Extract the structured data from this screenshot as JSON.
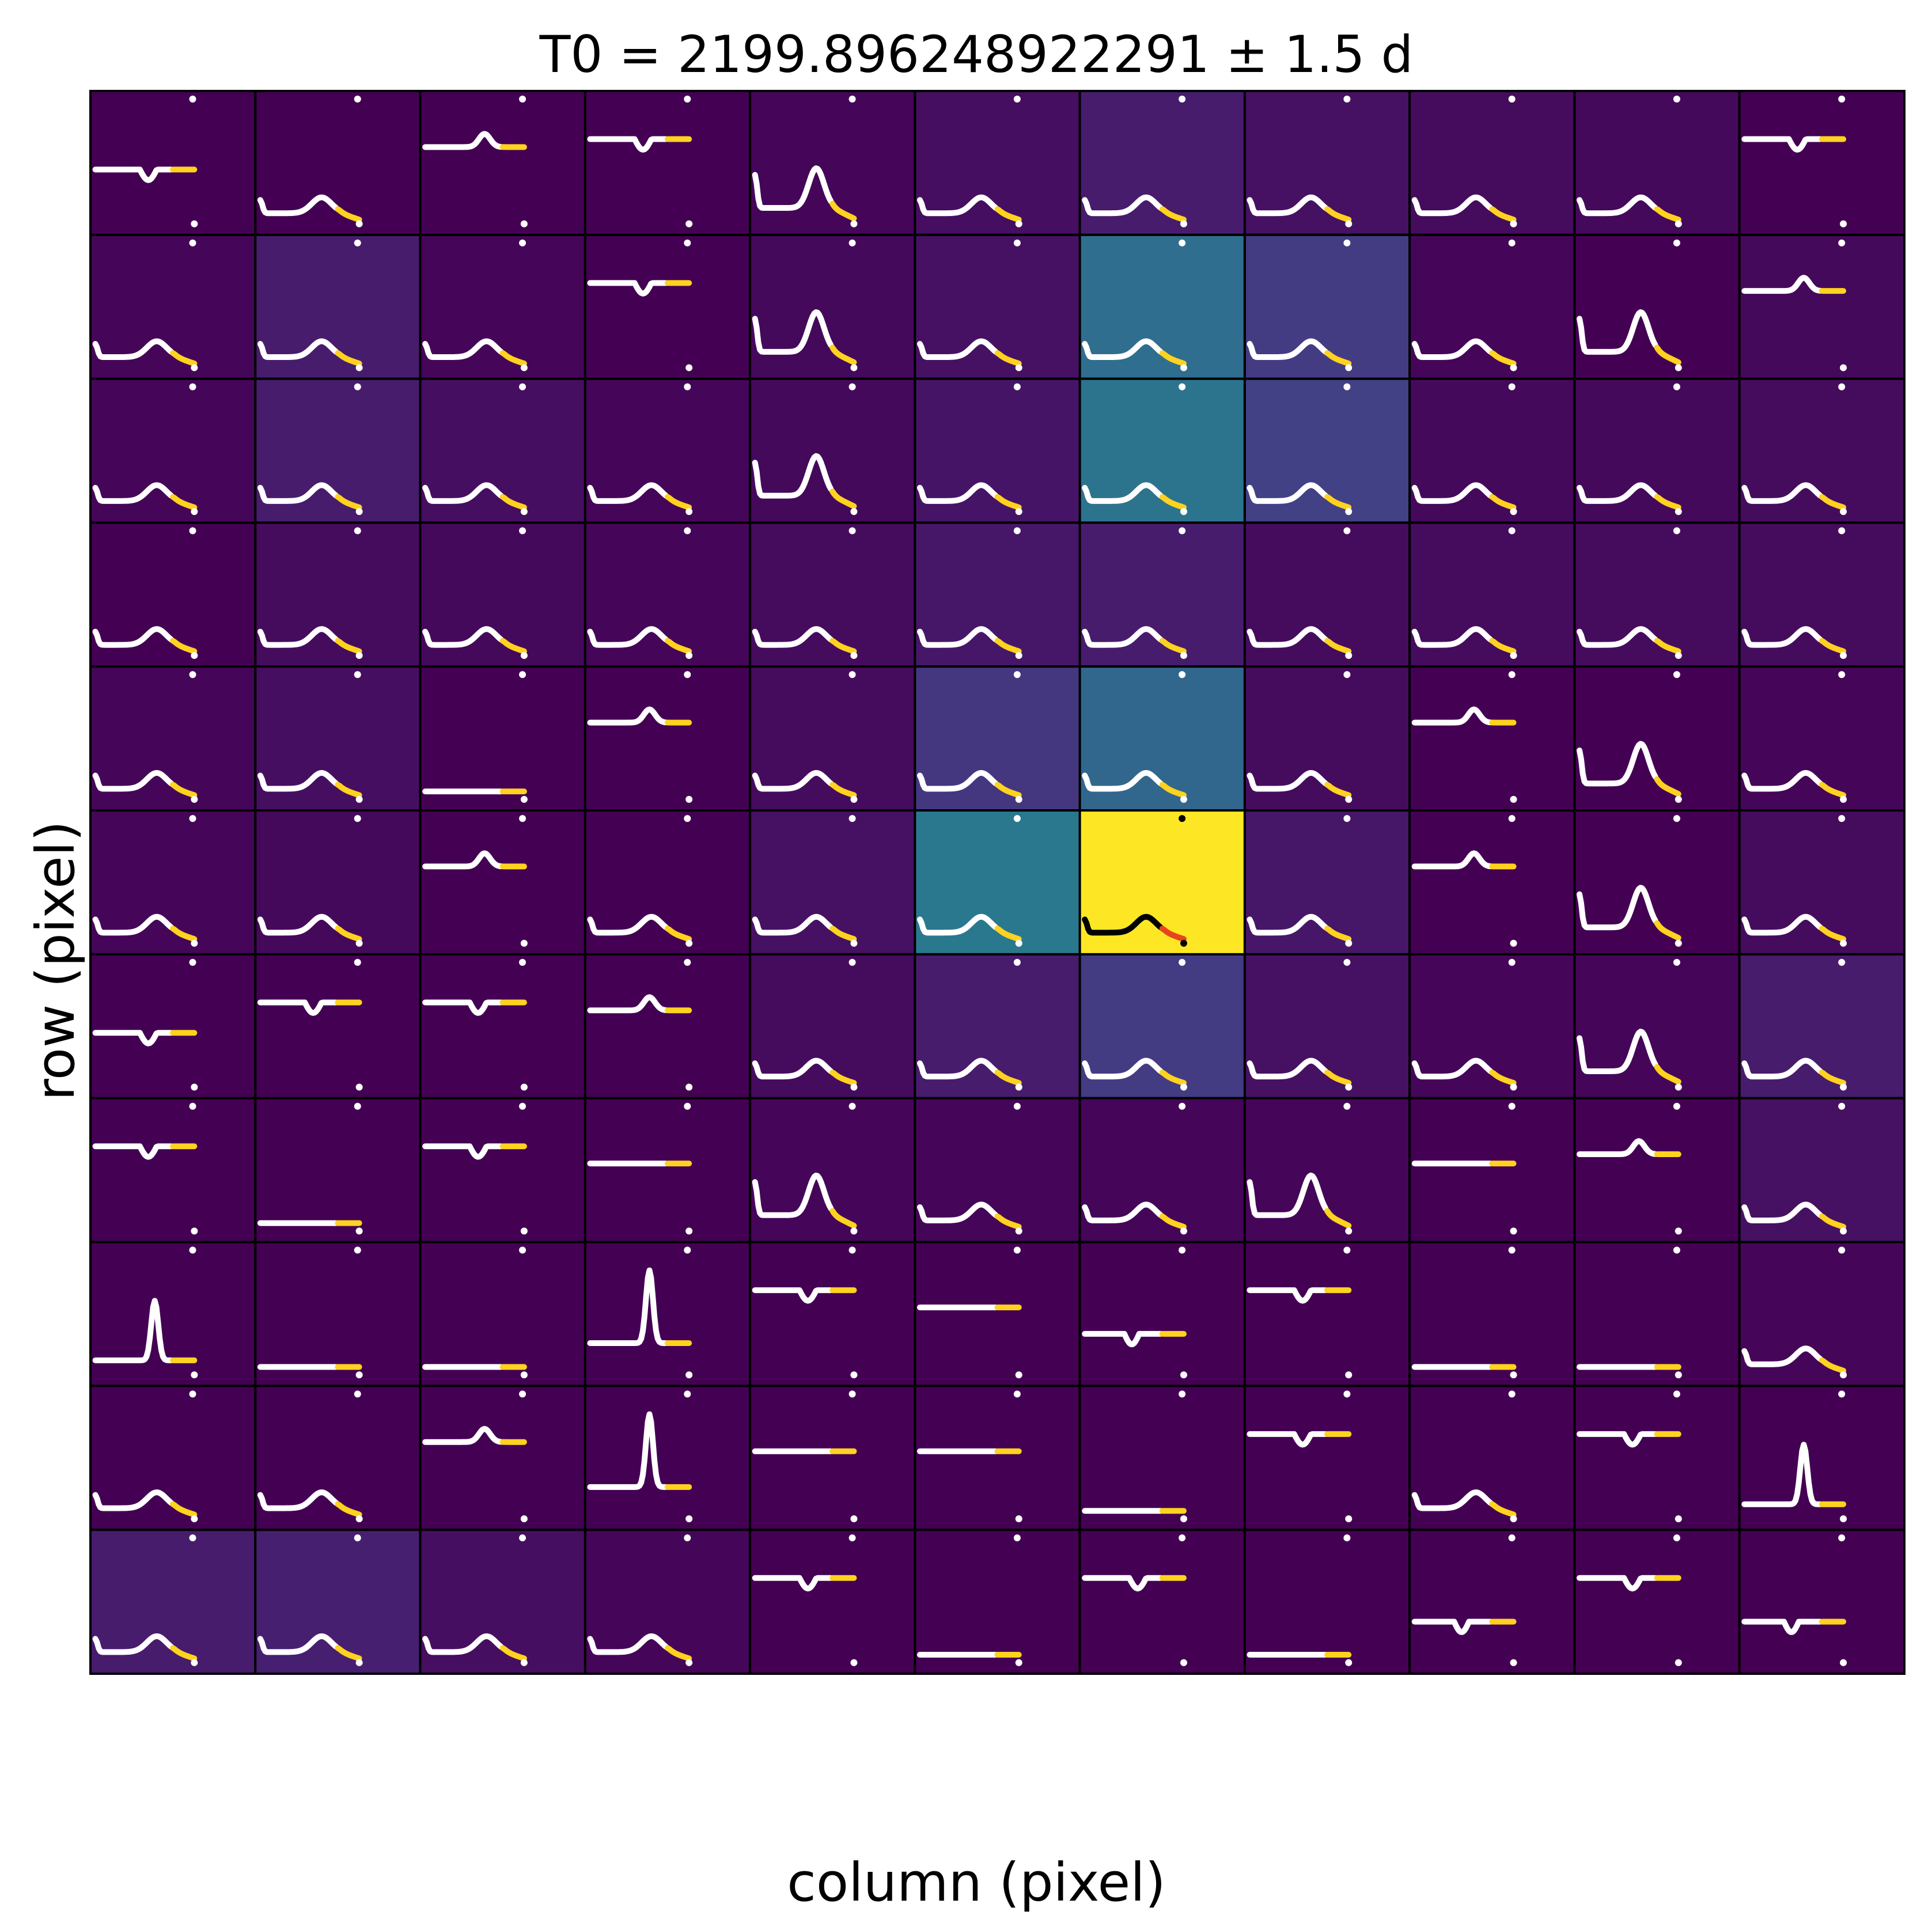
{
  "chart_data": {
    "type": "heatmap",
    "title": "T0 = 2199.896248922291 ± 1.5 d",
    "xlabel": "column (pixel)",
    "ylabel": "row (pixel)",
    "grid": {
      "rows": 11,
      "cols": 11
    },
    "colormap": "viridis",
    "cell_border_color": "#000000",
    "lightcurve_color": "#ffffff",
    "highlight_color": "#ffd21f",
    "target_lightcurve_color": "#000000",
    "target_highlight_color": "#e8441e",
    "target_pixel": {
      "row": 5,
      "col": 6
    },
    "intensity": [
      [
        0.0,
        0.0,
        0.0,
        0.0,
        0.02,
        0.05,
        0.1,
        0.06,
        0.04,
        0.03,
        0.0
      ],
      [
        0.02,
        0.1,
        0.02,
        0.0,
        0.03,
        0.06,
        0.45,
        0.22,
        0.02,
        0.0,
        0.03
      ],
      [
        0.02,
        0.1,
        0.05,
        0.02,
        0.03,
        0.07,
        0.48,
        0.24,
        0.03,
        0.03,
        0.04
      ],
      [
        0.0,
        0.04,
        0.03,
        0.02,
        0.04,
        0.08,
        0.1,
        0.04,
        0.04,
        0.04,
        0.04
      ],
      [
        0.02,
        0.05,
        0.0,
        0.0,
        0.04,
        0.2,
        0.42,
        0.04,
        0.0,
        0.0,
        0.02
      ],
      [
        0.02,
        0.03,
        0.0,
        0.0,
        0.06,
        0.5,
        1.0,
        0.08,
        0.0,
        0.0,
        0.04
      ],
      [
        0.0,
        0.0,
        0.0,
        0.0,
        0.04,
        0.1,
        0.22,
        0.06,
        0.02,
        0.02,
        0.1
      ],
      [
        0.0,
        0.0,
        0.0,
        0.0,
        0.02,
        0.02,
        0.02,
        0.02,
        0.0,
        0.0,
        0.06
      ],
      [
        0.0,
        0.0,
        0.0,
        0.0,
        0.0,
        0.0,
        0.0,
        0.0,
        0.0,
        0.0,
        0.02
      ],
      [
        0.0,
        0.0,
        0.0,
        0.0,
        0.0,
        0.0,
        0.0,
        0.0,
        0.0,
        0.0,
        0.0
      ],
      [
        0.1,
        0.11,
        0.05,
        0.02,
        0.0,
        0.0,
        0.0,
        0.0,
        0.0,
        0.0,
        0.0
      ]
    ],
    "lightcurve_shapes": [
      [
        "flat-low-dip",
        "bump",
        "bump-high",
        "flat-high-dip",
        "peak",
        "bump",
        "bump",
        "bump",
        "bump",
        "bump",
        "flat-high-dip"
      ],
      [
        "bump",
        "bump",
        "bump",
        "flat-high-dip",
        "peak",
        "bump",
        "bump",
        "bump",
        "bump",
        "peak",
        "bump-high"
      ],
      [
        "bump",
        "bump",
        "bump",
        "bump",
        "peak",
        "bump",
        "bump",
        "bump",
        "bump",
        "bump",
        "bump"
      ],
      [
        "bump",
        "bump",
        "bump",
        "bump",
        "bump",
        "bump",
        "bump",
        "bump",
        "bump",
        "bump",
        "bump"
      ],
      [
        "bump",
        "bump",
        "flat-bottom",
        "bump-high",
        "bump",
        "bump",
        "bump",
        "bump",
        "bump-high",
        "peak",
        "bump"
      ],
      [
        "bump",
        "bump",
        "bump-high",
        "bump",
        "bump",
        "bump",
        "bump",
        "bump",
        "bump-high",
        "peak",
        "bump"
      ],
      [
        "flat-low-dip",
        "flat-high-dip",
        "flat-high-dip",
        "bump-high",
        "bump",
        "bump",
        "bump",
        "bump",
        "bump",
        "peak",
        "bump"
      ],
      [
        "flat-high-dip",
        "flat-bottom",
        "flat-high-dip",
        "flat-mid",
        "peak",
        "bump",
        "bump",
        "peak",
        "flat-mid",
        "bump-high",
        "bump"
      ],
      [
        "spike",
        "flat-bottom",
        "flat-bottom",
        "spike-high",
        "flat-high-dip",
        "flat-mid",
        "flat-mid-dip",
        "flat-high-dip",
        "flat-bottom",
        "flat-bottom",
        "bump"
      ],
      [
        "bump",
        "bump",
        "bump-high",
        "spike-high",
        "flat-mid",
        "flat-mid",
        "flat-bottom",
        "flat-high-dip",
        "bump",
        "flat-high-dip",
        "spike"
      ],
      [
        "bump",
        "bump",
        "bump",
        "bump",
        "flat-high-dip",
        "flat-bottom",
        "flat-high-dip",
        "flat-bottom",
        "flat-mid-dip",
        "flat-high-dip",
        "flat-mid-dip"
      ]
    ]
  }
}
